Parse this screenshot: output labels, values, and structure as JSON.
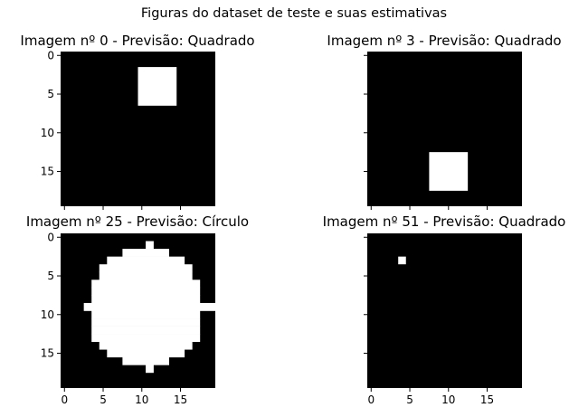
{
  "title": "Figuras do dataset de teste e suas estimativas",
  "chart_data": [
    {
      "type": "heatmap",
      "title": "Imagem nº 0 - Previsão: Quadrado",
      "grid_size": 20,
      "colors": {
        "on": "#ffffff",
        "off": "#000000"
      },
      "white_rects": [
        {
          "cols": [
            10,
            14
          ],
          "rows": [
            2,
            6
          ]
        }
      ],
      "white_cells": [],
      "y_ticks": [
        "0",
        "5",
        "10",
        "15"
      ],
      "x_ticks": []
    },
    {
      "type": "heatmap",
      "title": "Imagem nº 3 - Previsão: Quadrado",
      "grid_size": 20,
      "colors": {
        "on": "#ffffff",
        "off": "#000000"
      },
      "white_rects": [
        {
          "cols": [
            8,
            12
          ],
          "rows": [
            13,
            17
          ]
        }
      ],
      "white_cells": [],
      "y_ticks": [],
      "x_ticks": []
    },
    {
      "type": "heatmap",
      "title": "Imagem nº 25 - Previsão: Círculo",
      "grid_size": 20,
      "colors": {
        "on": "#ffffff",
        "off": "#000000"
      },
      "white_row_spans": [
        [
          1,
          11,
          11
        ],
        [
          2,
          8,
          13
        ],
        [
          3,
          6,
          15
        ],
        [
          4,
          5,
          16
        ],
        [
          5,
          5,
          16
        ],
        [
          6,
          4,
          17
        ],
        [
          7,
          4,
          17
        ],
        [
          8,
          4,
          17
        ],
        [
          9,
          3,
          19
        ],
        [
          10,
          4,
          17
        ],
        [
          11,
          4,
          17
        ],
        [
          12,
          4,
          17
        ],
        [
          13,
          4,
          17
        ],
        [
          14,
          5,
          16
        ],
        [
          15,
          6,
          15
        ],
        [
          16,
          8,
          13
        ],
        [
          17,
          11,
          11
        ]
      ],
      "y_ticks": [
        "0",
        "5",
        "10",
        "15"
      ],
      "x_ticks": [
        "0",
        "5",
        "10",
        "15"
      ]
    },
    {
      "type": "heatmap",
      "title": "Imagem nº 51 - Previsão: Quadrado",
      "grid_size": 20,
      "colors": {
        "on": "#ffffff",
        "off": "#000000"
      },
      "white_rects": [],
      "white_cells": [
        [
          4,
          3
        ]
      ],
      "y_ticks": [],
      "x_ticks": [
        "0",
        "5",
        "10",
        "15"
      ]
    }
  ]
}
